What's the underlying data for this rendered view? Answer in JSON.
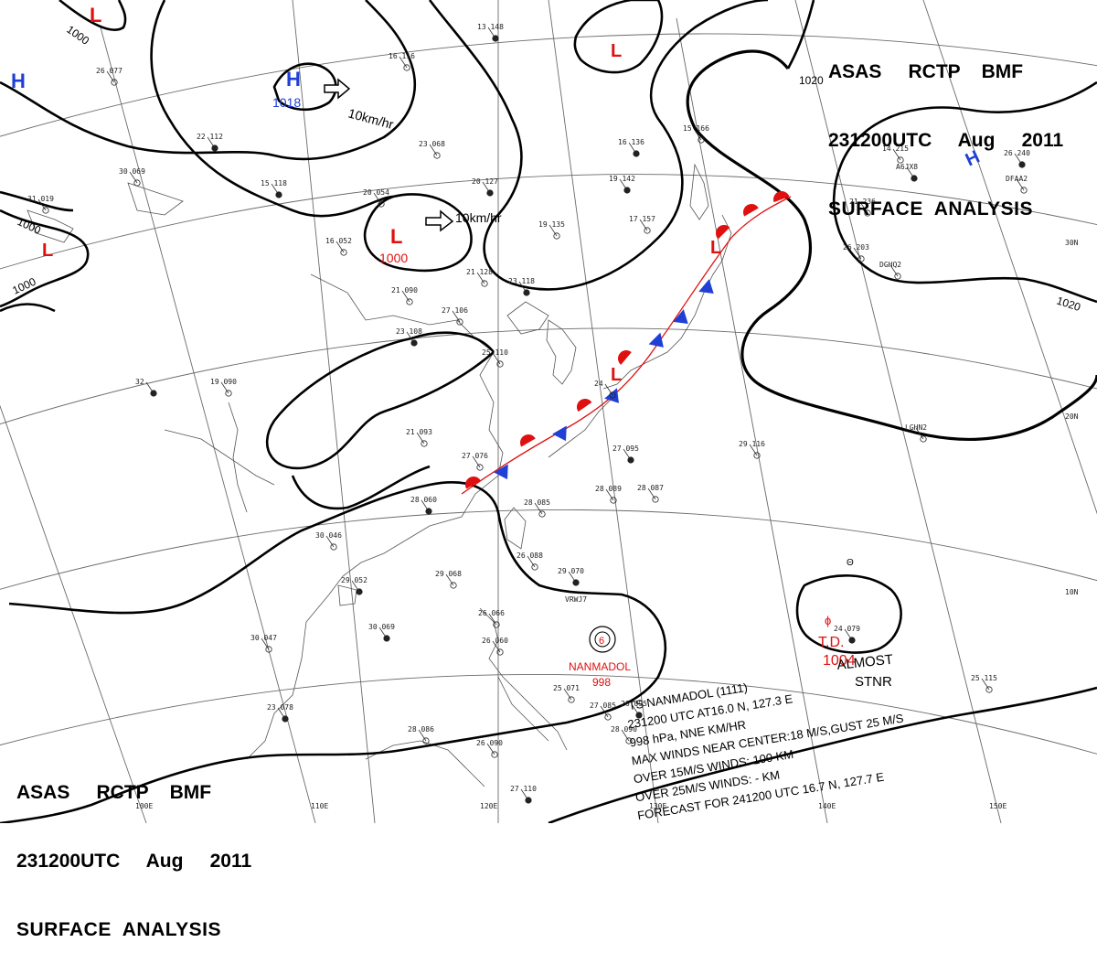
{
  "titles": {
    "top": {
      "line1": "ASAS     RCTP    BMF",
      "line2": "231200UTC     Aug     2011",
      "line3": "SURFACE  ANALYSIS"
    },
    "bottom": {
      "line1": "ASAS     RCTP    BMF",
      "line2": "231200UTC     Aug     2011",
      "line3": "SURFACE  ANALYSIS"
    }
  },
  "colors": {
    "high": "#1f3fd6",
    "low": "#e01010",
    "warm_front": "#e01010",
    "cold_front": "#1f3fd6",
    "isobar": "#000000",
    "grid": "#6a6a6a"
  },
  "lon_labels": [
    "100E",
    "110E",
    "120E",
    "130E",
    "140E",
    "150E"
  ],
  "lat_labels": [
    "30N",
    "20N",
    "10N"
  ],
  "isobar_labels": [
    "1000",
    "1000",
    "1000",
    "1020",
    "1020"
  ],
  "pressure_centers": [
    {
      "type": "H",
      "value": "1018"
    },
    {
      "type": "H",
      "value": ""
    },
    {
      "type": "H",
      "value": ""
    },
    {
      "type": "L",
      "value": "1000"
    },
    {
      "type": "L",
      "value": ""
    },
    {
      "type": "L",
      "value": ""
    },
    {
      "type": "L",
      "value": ""
    },
    {
      "type": "L",
      "value": ""
    },
    {
      "type": "L",
      "value": ""
    }
  ],
  "motion_labels": [
    "10km/hr",
    "10km/hr"
  ],
  "storms": {
    "nanmadol": {
      "name": "NANMADOL",
      "pressure": "998",
      "ship": "VRWJ7"
    },
    "td": {
      "label": "T.D.",
      "pressure": "1004",
      "status_line1": "ALMOST",
      "status_line2": "STNR"
    }
  },
  "bulletin": [
    "TS  NANMADOL  (1111)",
    "231200 UTC  AT16.0 N, 127.3 E",
    "998 hPa, NNE   KM/HR",
    "MAX WINDS NEAR CENTER:18 M/S,GUST 25 M/S",
    "OVER 15M/S WINDS: 100 KM",
    "OVER 25M/S WINDS: - KM",
    "FORECAST FOR 241200 UTC 16.7 N, 127.7 E"
  ],
  "station_labels": [
    "13 148",
    "16 116",
    "26 077",
    "22 112",
    "30 069",
    "31 019",
    "15 118",
    "20 054",
    "23 068",
    "20 127",
    "16 052",
    "19 135",
    "19 142",
    "17 157",
    "21 128",
    "23 118",
    "21 090",
    "27 106",
    "23 108",
    "25 110",
    "19 090",
    "32",
    "21 093",
    "27 076",
    "28 060",
    "28 085",
    "28 089",
    "27 095",
    "28 087",
    "30 046",
    "29 052",
    "29 068",
    "26 088",
    "29 070",
    "26 066",
    "26 060",
    "30 069",
    "30 047",
    "25 071",
    "23 078",
    "28 086",
    "26 090",
    "27 110",
    "27 085",
    "24",
    "26 095",
    "28 090",
    "29 116",
    "16 136",
    "15 166",
    "14 215",
    "26 240",
    "21 236",
    "26 203",
    "24 079",
    "25 115",
    "LGHN2",
    "A6JX8",
    "DFAA2",
    "DGHQ2"
  ]
}
